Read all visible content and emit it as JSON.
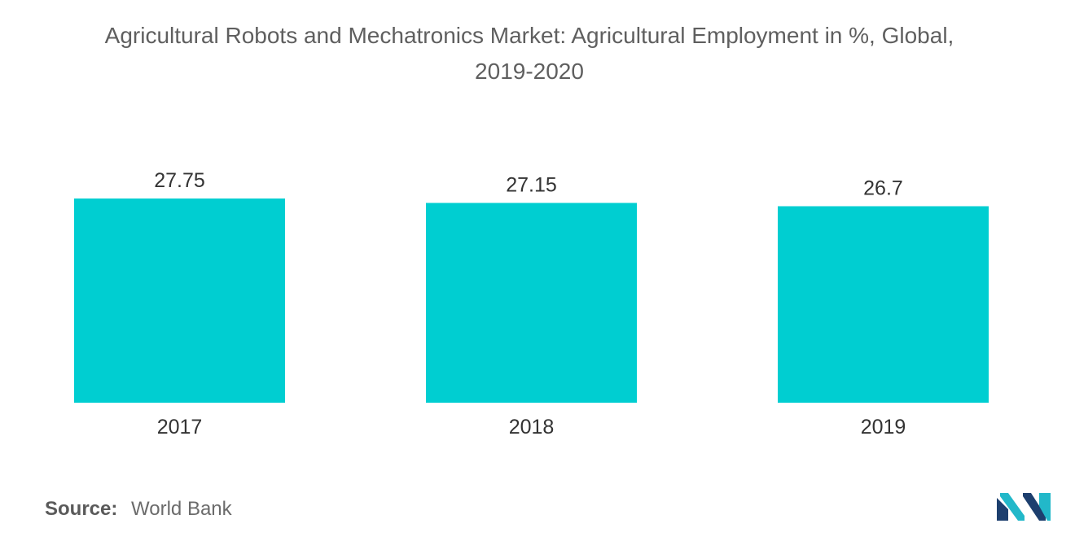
{
  "title": {
    "line1": "Agricultural Robots and Mechatronics Market: Agricultural Employment in %, Global,",
    "line2": "2019-2020"
  },
  "source": {
    "label": "Source:",
    "value": "World Bank"
  },
  "colors": {
    "bar": "#00ced1",
    "label_text": "#333333",
    "logo_dark": "#1d3f6e",
    "logo_teal": "#22b8c9"
  },
  "logo": {
    "icon": "mordor-intelligence-logo-icon"
  },
  "chart_data": {
    "type": "bar",
    "categories": [
      "2017",
      "2018",
      "2019"
    ],
    "values": [
      27.75,
      27.15,
      26.7
    ],
    "data_labels": [
      "27.75",
      "27.15",
      "26.7"
    ],
    "title": "Agricultural Robots and Mechatronics Market: Agricultural Employment in %, Global, 2019-2020",
    "xlabel": "",
    "ylabel": "",
    "grid": false,
    "legend": "none",
    "y_axis_visible": false
  }
}
